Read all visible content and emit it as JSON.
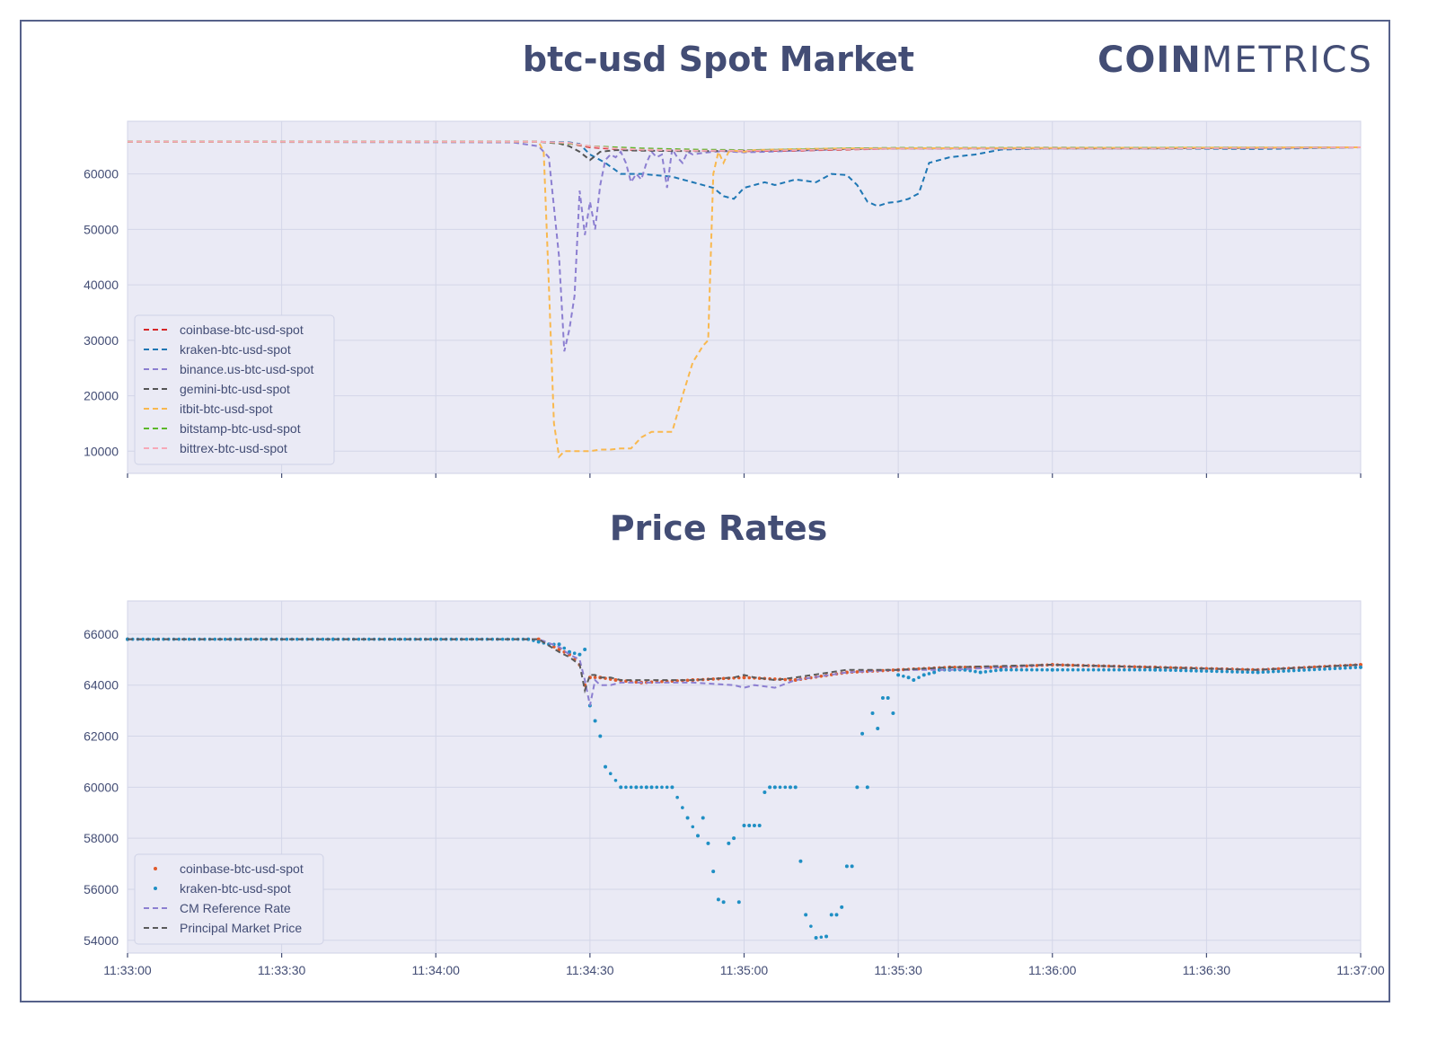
{
  "logo": {
    "bold": "COIN",
    "light": "METRICS"
  },
  "chart_data": [
    {
      "type": "line",
      "title": "btc-usd Spot Market",
      "yticks": [
        10000,
        20000,
        30000,
        40000,
        50000,
        60000
      ],
      "ylim": [
        6000,
        69500
      ],
      "xlim_seconds": [
        0,
        240
      ],
      "grid": true,
      "legend_position": "lower-left",
      "series": [
        {
          "name": "coinbase-btc-usd-spot",
          "color": "#d62728",
          "x": [
            0,
            80,
            86,
            90,
            95,
            100,
            110,
            120,
            130,
            140,
            150,
            160,
            180,
            200,
            220,
            240
          ],
          "y": [
            65800,
            65800,
            65500,
            64800,
            64500,
            64300,
            64200,
            64100,
            64200,
            64400,
            64600,
            64600,
            64700,
            64600,
            64600,
            64800
          ]
        },
        {
          "name": "kraken-btc-usd-spot",
          "color": "#1f77b4",
          "x": [
            0,
            80,
            86,
            88,
            90,
            93,
            96,
            100,
            106,
            110,
            114,
            116,
            118,
            120,
            124,
            126,
            130,
            134,
            137,
            140,
            142,
            144,
            146,
            148,
            150,
            152,
            154,
            156,
            160,
            165,
            170,
            180,
            200,
            220,
            240
          ],
          "y": [
            65800,
            65800,
            65700,
            65400,
            63500,
            62000,
            60000,
            60000,
            59500,
            58500,
            57500,
            56000,
            55500,
            57500,
            58500,
            58000,
            59000,
            58500,
            60000,
            59800,
            58000,
            55000,
            54200,
            54800,
            55000,
            55500,
            56500,
            62000,
            63000,
            63500,
            64400,
            64600,
            64600,
            64500,
            64800
          ]
        },
        {
          "name": "binance.us-btc-usd-spot",
          "color": "#8c7fd1",
          "x": [
            0,
            75,
            80,
            82,
            84,
            85,
            86,
            87,
            88,
            89,
            90,
            91,
            92,
            93,
            94,
            95,
            96,
            97,
            98,
            99,
            100,
            101,
            102,
            103,
            104,
            105,
            106,
            107,
            108,
            109,
            110,
            112,
            114,
            116,
            120,
            124,
            130,
            140,
            150,
            200,
            240
          ],
          "y": [
            65800,
            65700,
            65000,
            63000,
            45000,
            28000,
            32000,
            38000,
            57000,
            49000,
            55000,
            50000,
            58000,
            62500,
            63500,
            63000,
            64000,
            62000,
            58500,
            60000,
            59000,
            62000,
            64000,
            63000,
            63500,
            57500,
            64500,
            63000,
            62000,
            64000,
            63500,
            63800,
            64000,
            64100,
            63900,
            64000,
            64200,
            64500,
            64600,
            64600,
            64800
          ]
        },
        {
          "name": "gemini-btc-usd-spot",
          "color": "#555555",
          "x": [
            0,
            80,
            84,
            86,
            88,
            90,
            92,
            95,
            100,
            110,
            120,
            130,
            140,
            150,
            200,
            240
          ],
          "y": [
            65800,
            65800,
            65500,
            65000,
            64000,
            62500,
            64000,
            64300,
            64200,
            64100,
            64200,
            64300,
            64500,
            64600,
            64600,
            64800
          ]
        },
        {
          "name": "itbit-btc-usd-spot",
          "color": "#f9b84e",
          "x": [
            0,
            80,
            81,
            82,
            83,
            84,
            85,
            86,
            87,
            88,
            89,
            90,
            92,
            94,
            96,
            98,
            100,
            102,
            104,
            106,
            108,
            110,
            112,
            113,
            114,
            115,
            116,
            117,
            118,
            119,
            120,
            121,
            122,
            126,
            130,
            140,
            240
          ],
          "y": [
            65800,
            65800,
            64000,
            40000,
            15000,
            9000,
            10000,
            10000,
            10000,
            10000,
            10000,
            10000,
            10300,
            10300,
            10500,
            10500,
            12500,
            13500,
            13500,
            13500,
            20000,
            26000,
            29000,
            30000,
            60000,
            64000,
            62000,
            64000,
            64200,
            64100,
            64000,
            64200,
            64300,
            64400,
            64500,
            64600,
            64800
          ]
        },
        {
          "name": "bitstamp-btc-usd-spot",
          "color": "#5cb82a",
          "x": [
            0,
            80,
            86,
            90,
            95,
            100,
            110,
            120,
            130,
            140,
            150,
            160,
            200,
            240
          ],
          "y": [
            65800,
            65800,
            65500,
            65000,
            64800,
            64600,
            64400,
            64300,
            64400,
            64600,
            64700,
            64700,
            64700,
            64800
          ]
        },
        {
          "name": "bittrex-btc-usd-spot",
          "color": "#f7a8b8",
          "x": [
            0,
            80,
            86,
            90,
            95,
            100,
            110,
            120,
            130,
            140,
            150,
            200,
            240
          ],
          "y": [
            65800,
            65800,
            65600,
            65000,
            64600,
            64400,
            64200,
            64200,
            64300,
            64500,
            64600,
            64600,
            64800
          ]
        }
      ]
    },
    {
      "type": "scatter",
      "title": "Price Rates",
      "xticks": [
        "11:33:00",
        "11:33:30",
        "11:34:00",
        "11:34:30",
        "11:35:00",
        "11:35:30",
        "11:36:00",
        "11:36:30",
        "11:37:00"
      ],
      "yticks": [
        54000,
        56000,
        58000,
        60000,
        62000,
        64000,
        66000
      ],
      "ylim": [
        53500,
        67300
      ],
      "xlim_seconds": [
        0,
        240
      ],
      "grid": true,
      "legend_position": "lower-left",
      "series": [
        {
          "name": "coinbase-btc-usd-spot",
          "color": "#e05a2b",
          "marker": "dot",
          "x": [
            0,
            80,
            84,
            86,
            88,
            89,
            90,
            92,
            95,
            100,
            110,
            120,
            130,
            140,
            150,
            160,
            170,
            180,
            200,
            220,
            240
          ],
          "y": [
            65800,
            65800,
            65400,
            65200,
            64800,
            64000,
            64300,
            64300,
            64200,
            64100,
            64200,
            64300,
            64200,
            64500,
            64600,
            64700,
            64700,
            64800,
            64700,
            64600,
            64800
          ]
        },
        {
          "name": "kraken-btc-usd-spot",
          "color": "#1f8fc4",
          "marker": "dot",
          "x": [
            0,
            20,
            40,
            60,
            78,
            80,
            82,
            84,
            86,
            88,
            89,
            90,
            91,
            92,
            93,
            96,
            99,
            101,
            102,
            106,
            109,
            111,
            112,
            113,
            114,
            115,
            116,
            117,
            118,
            119,
            120,
            121,
            122,
            123,
            124,
            125,
            126,
            129,
            130,
            131,
            132,
            134,
            136,
            137,
            138,
            139,
            140,
            141,
            142,
            143,
            144,
            145,
            146,
            147,
            148,
            149,
            150,
            152,
            153,
            155,
            157,
            158,
            160,
            163,
            166,
            170,
            180,
            200,
            220,
            240
          ],
          "y": [
            65800,
            65800,
            65800,
            65800,
            65800,
            65700,
            65600,
            65600,
            65300,
            65200,
            65400,
            63200,
            62600,
            62000,
            60800,
            60000,
            60000,
            60000,
            60000,
            60000,
            58800,
            58100,
            58800,
            57800,
            56700,
            55600,
            55500,
            57800,
            58000,
            55500,
            58500,
            58500,
            58500,
            58500,
            59800,
            60000,
            60000,
            60000,
            60000,
            57100,
            55000,
            54100,
            54150,
            55000,
            55000,
            55300,
            56900,
            56900,
            60000,
            62100,
            60000,
            62900,
            62300,
            63500,
            63500,
            62900,
            64400,
            64300,
            64200,
            64400,
            64500,
            64600,
            64600,
            64600,
            64500,
            64600,
            64600,
            64600,
            64500,
            64700
          ]
        },
        {
          "name": "CM Reference Rate",
          "color": "#8c7fd1",
          "marker": "dashed-line",
          "x": [
            0,
            80,
            84,
            86,
            88,
            89,
            90,
            91,
            92,
            94,
            96,
            100,
            110,
            118,
            120,
            122,
            126,
            130,
            140,
            150,
            160,
            180,
            200,
            220,
            240
          ],
          "y": [
            65800,
            65800,
            65500,
            65200,
            65000,
            64200,
            63200,
            64200,
            64000,
            64000,
            64100,
            64100,
            64100,
            64000,
            63900,
            64000,
            63900,
            64200,
            64500,
            64600,
            64600,
            64800,
            64700,
            64600,
            64800
          ]
        },
        {
          "name": "Principal Market Price",
          "color": "#5a5a5a",
          "marker": "dashed-line",
          "x": [
            0,
            80,
            84,
            86,
            88,
            89,
            90,
            91,
            92,
            94,
            96,
            100,
            110,
            118,
            120,
            122,
            126,
            130,
            140,
            150,
            160,
            180,
            200,
            220,
            240
          ],
          "y": [
            65800,
            65800,
            65300,
            65100,
            64800,
            63800,
            64400,
            64400,
            64300,
            64300,
            64200,
            64200,
            64200,
            64300,
            64400,
            64300,
            64200,
            64300,
            64600,
            64600,
            64700,
            64800,
            64700,
            64600,
            64800
          ]
        }
      ]
    }
  ]
}
